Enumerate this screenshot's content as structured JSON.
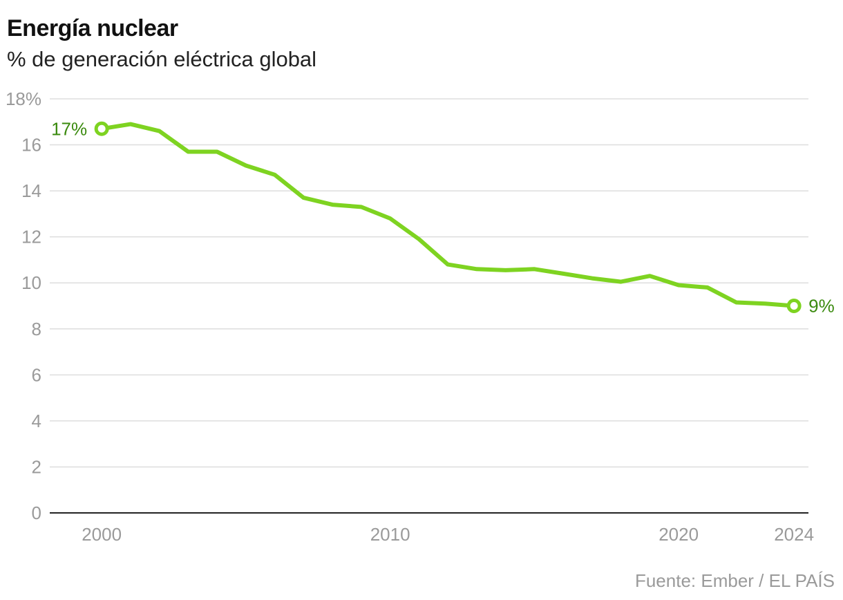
{
  "header": {
    "title": "Energía nuclear",
    "subtitle": "% de generación eléctrica global"
  },
  "footer": {
    "source": "Fuente: Ember / EL PAÍS"
  },
  "colors": {
    "line": "#7ed321",
    "label": "#3a8a0e",
    "grid": "#dddddd",
    "axis": "#222222",
    "tick": "#9a9a9a"
  },
  "chart_data": {
    "type": "line",
    "title": "Energía nuclear",
    "subtitle": "% de generación eléctrica global",
    "xlabel": "",
    "ylabel": "% de generación eléctrica global",
    "x": [
      2000,
      2001,
      2002,
      2003,
      2004,
      2005,
      2006,
      2007,
      2008,
      2009,
      2010,
      2011,
      2012,
      2013,
      2014,
      2015,
      2016,
      2017,
      2018,
      2019,
      2020,
      2021,
      2022,
      2023,
      2024
    ],
    "series": [
      {
        "name": "Energía nuclear",
        "values": [
          16.7,
          16.9,
          16.6,
          15.7,
          15.7,
          15.1,
          14.7,
          13.7,
          13.4,
          13.3,
          12.8,
          11.9,
          10.8,
          10.6,
          10.55,
          10.6,
          10.4,
          10.2,
          10.05,
          10.3,
          9.9,
          9.8,
          9.15,
          9.1,
          9.0
        ]
      }
    ],
    "xlim": [
      1998.2,
      2024.5
    ],
    "ylim": [
      0,
      18
    ],
    "x_ticks": [
      2000,
      2010,
      2020,
      2024
    ],
    "x_tick_labels": [
      "2000",
      "2010",
      "2020",
      "2024"
    ],
    "y_ticks": [
      0,
      2,
      4,
      6,
      8,
      10,
      12,
      14,
      16,
      18
    ],
    "y_tick_labels": [
      "0",
      "2",
      "4",
      "6",
      "8",
      "10",
      "12",
      "14",
      "16",
      "18%"
    ],
    "annotations": [
      {
        "x": 2000,
        "y": 16.7,
        "text": "17%",
        "side": "left"
      },
      {
        "x": 2024,
        "y": 9.0,
        "text": "9%",
        "side": "right"
      }
    ],
    "grid": true,
    "legend": "none"
  }
}
